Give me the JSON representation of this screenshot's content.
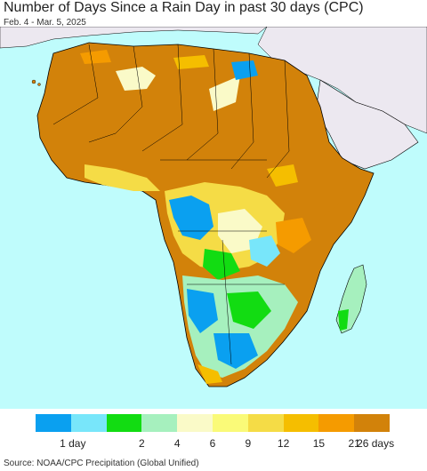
{
  "header": {
    "title": "Number of Days Since a Rain Day in past 30 days (CPC)",
    "date_range": "Feb. 4 - Mar. 5, 2025"
  },
  "map": {
    "ocean_color": "#bffcfc",
    "land_outside_color": "#ece8f0",
    "border_color": "#000000"
  },
  "legend": {
    "colors": [
      "#0aa0f0",
      "#78e6fa",
      "#12dc12",
      "#a6f0be",
      "#fafac8",
      "#fafa78",
      "#f5dc46",
      "#f5be00",
      "#f59b00",
      "#d2820a"
    ],
    "labels": [
      {
        "text": "1 day",
        "pos": 0
      },
      {
        "text": "2",
        "pos": 2
      },
      {
        "text": "4",
        "pos": 3
      },
      {
        "text": "6",
        "pos": 4
      },
      {
        "text": "9",
        "pos": 5
      },
      {
        "text": "12",
        "pos": 6
      },
      {
        "text": "15",
        "pos": 7
      },
      {
        "text": "21",
        "pos": 8
      },
      {
        "text": "26 days",
        "pos": 9
      }
    ]
  },
  "footer": {
    "source": "Source: NOAA/CPC Precipitation (Global Unified)"
  }
}
